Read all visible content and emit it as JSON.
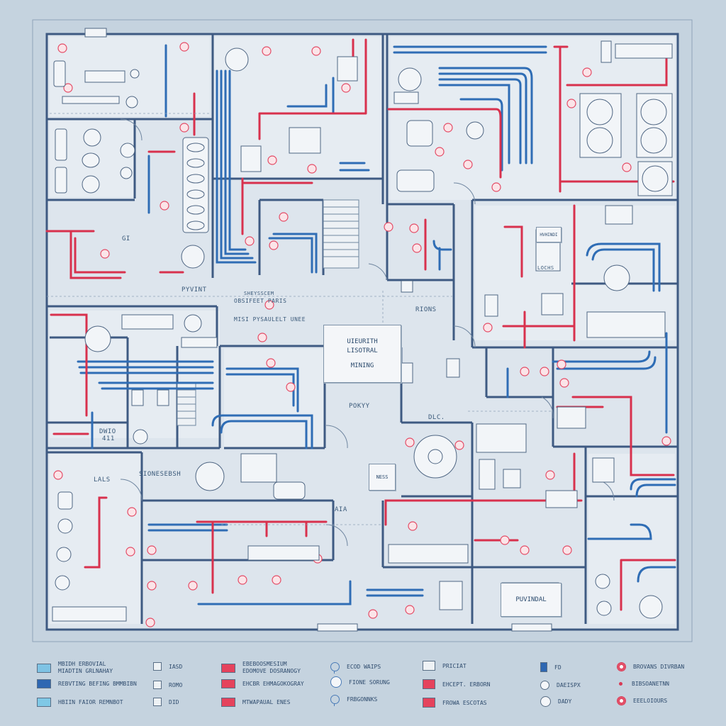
{
  "labels": {
    "pyvint": "PYVINT",
    "obj_top": "SHEYSSCEM",
    "obj_bottom": "OBSIFEET  PARIS",
    "mid": "MISI PYSAULELT UNEE",
    "rions": "RIONS",
    "center_note_1": "UIEURITH",
    "center_note_2": "LISOTRAL",
    "center_note_3": "MINING",
    "pokyy": "POKYY",
    "dlc": "DLC.",
    "dwio": "DWIO",
    "small_411": "411",
    "sionses": "SIONESEBSH",
    "nes": "NESS",
    "aia": "AIA",
    "lals": "LALS",
    "pvindal": "PUVINDAL",
    "hvhindi": "HVHINDI",
    "lodis": "LOCHS",
    "gi": "GI"
  },
  "legend": {
    "col1": [
      {
        "label": "MBIDH ERBOVIAL\nMIADTIN GRLNAHAY",
        "color": "#7fc3e4"
      },
      {
        "label": "REBVTING BEFING BMMBIBN",
        "color": "#2e67b2"
      },
      {
        "label": "HBIIN FAIOR REMNBOT",
        "color": "#7fc8e6"
      }
    ],
    "col2": [
      {
        "label": "IASD"
      },
      {
        "label": "ROMO"
      },
      {
        "label": "DID"
      }
    ],
    "col3": [
      {
        "label": "EBEBOOSMESIUM\nEDOMOVE DOSRANOGY",
        "color": "#e5425c"
      },
      {
        "label": "EHCBR EHMAGOKOGRAY",
        "color": "#e5425c"
      },
      {
        "label": "MTWAPAUAL ENES",
        "color": "#e5425c"
      }
    ],
    "col4": [
      {
        "label": "ECOD WAIPS"
      },
      {
        "label": "FIONE SORUNG"
      },
      {
        "label": "FRBGONNKS"
      }
    ],
    "col5": [
      {
        "label": "PRICIAT",
        "color": "#eef2f5"
      },
      {
        "label": "EHCEPT. ERBORN",
        "color": "#e5425c"
      },
      {
        "label": "FROWA ESCOTAS",
        "color": "#e5425c"
      }
    ],
    "col6": [
      {
        "label": "FD"
      },
      {
        "label": "DAEISPX"
      },
      {
        "label": "DADY"
      }
    ],
    "col7": [
      {
        "label": "BROVANS DIVRBAN"
      },
      {
        "label": "BIBSOANETNN"
      },
      {
        "label": "EEELOIOURS"
      }
    ]
  },
  "colors": {
    "background": "#c5d3df",
    "wall": "#3e5a82",
    "pipe_blue": "#2f6db5",
    "pipe_red": "#d8314d",
    "floor": "#dde5ed"
  }
}
